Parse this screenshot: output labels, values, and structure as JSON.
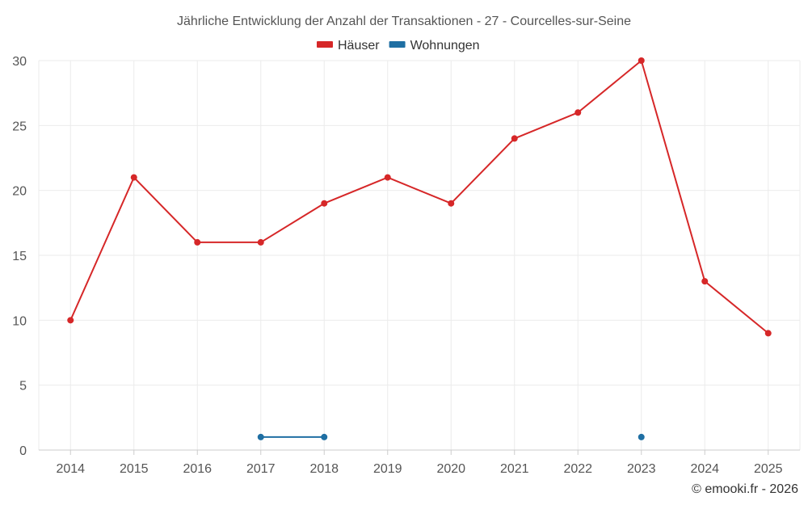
{
  "chart_data": {
    "type": "line",
    "title": "Jährliche Entwicklung der Anzahl der Transaktionen - 27 - Courcelles-sur-Seine",
    "categories": [
      "2014",
      "2015",
      "2016",
      "2017",
      "2018",
      "2019",
      "2020",
      "2021",
      "2022",
      "2023",
      "2024",
      "2025"
    ],
    "ylim": [
      0,
      30
    ],
    "yticks": [
      0,
      5,
      10,
      15,
      20,
      25,
      30
    ],
    "grid": true,
    "legend_position": "top-center",
    "series": [
      {
        "name": "Häuser",
        "color": "#d62728",
        "values": [
          10,
          21,
          16,
          16,
          19,
          21,
          19,
          24,
          26,
          30,
          13,
          9
        ]
      },
      {
        "name": "Wohnungen",
        "color": "#1f6fa3",
        "values": [
          null,
          null,
          null,
          1,
          1,
          null,
          null,
          null,
          null,
          1,
          null,
          null
        ]
      }
    ],
    "credit": "© emooki.fr - 2026"
  }
}
